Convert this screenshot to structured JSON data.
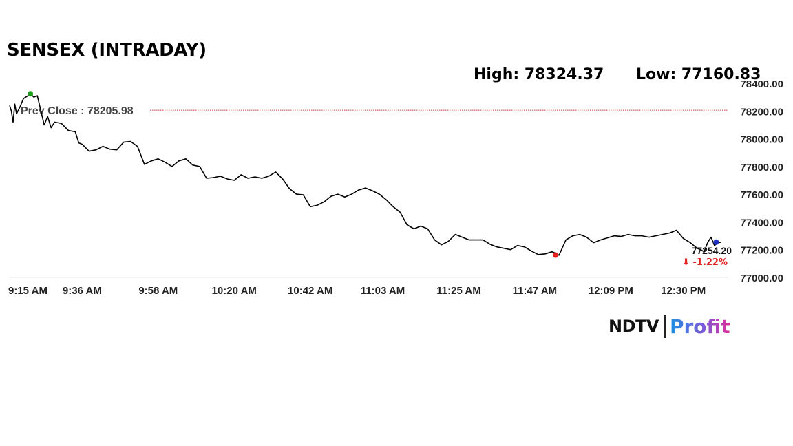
{
  "header": {
    "title": "SENSEX (INTRADAY)",
    "high_text": "High: 78324.37",
    "low_text": "Low: 77160.83"
  },
  "logo": {
    "left": "NDTV",
    "right": "Profit"
  },
  "chart_data": {
    "type": "line",
    "title": "SENSEX (INTRADAY)",
    "xlabel": "",
    "ylabel": "",
    "ylim": [
      77000,
      78400
    ],
    "y_ticks": [
      "78400.00",
      "78200.00",
      "78000.00",
      "77800.00",
      "77600.00",
      "77400.00",
      "77200.00",
      "77000.00"
    ],
    "x_ticks": [
      "9:15 AM",
      "9:36 AM",
      "9:58 AM",
      "10:20 AM",
      "10:42 AM",
      "11:03 AM",
      "11:25 AM",
      "11:47 AM",
      "12:09 PM",
      "12:30 PM"
    ],
    "x_tick_minutes": [
      555,
      576,
      598,
      620,
      642,
      663,
      685,
      707,
      729,
      750
    ],
    "prev_close": {
      "label": "Prev Close : 78205.98",
      "value": 78205.98,
      "color": "#e03a3a"
    },
    "last": {
      "value_text": "77254.20",
      "change_text": "⬇ -1.22%",
      "value": 77254.2,
      "change_color": "#e02020"
    },
    "high_marker": {
      "minute": 561,
      "value": 78324.37,
      "color": "#1a9a1a"
    },
    "low_marker": {
      "minute": 713,
      "value": 77160.83,
      "color": "#e02020"
    },
    "last_marker": {
      "minute": 759.5,
      "color": "#2030c0"
    },
    "line_color": "#000000",
    "series": [
      {
        "x": [
          555,
          555.5,
          556,
          556.5,
          557,
          558,
          559,
          560,
          561,
          562,
          563,
          565,
          566,
          567,
          568,
          570,
          572,
          574,
          575,
          576,
          578,
          580,
          582,
          584,
          586,
          588,
          590,
          592,
          594,
          596,
          598,
          600,
          602,
          604,
          606,
          608,
          610,
          612,
          614,
          616,
          618,
          620,
          622,
          624,
          626,
          628,
          630,
          632,
          634,
          636,
          638,
          640,
          642,
          644,
          646,
          648,
          650,
          652,
          654,
          656,
          658,
          660,
          662,
          664,
          666,
          668,
          670,
          672,
          674,
          676,
          678,
          680,
          682,
          684,
          686,
          688,
          690,
          692,
          694,
          696,
          698,
          700,
          702,
          704,
          706,
          708,
          710,
          712,
          713,
          714,
          716,
          718,
          720,
          722,
          724,
          726,
          728,
          730,
          732,
          734,
          736,
          738,
          740,
          742,
          744,
          746,
          748,
          750,
          752,
          754,
          755,
          756,
          757,
          758,
          759,
          760,
          761
        ],
        "values": [
          78240,
          78200,
          78120,
          78250,
          78180,
          78230,
          78290,
          78305,
          78324,
          78300,
          78310,
          78100,
          78160,
          78080,
          78120,
          78110,
          78060,
          78050,
          77970,
          77960,
          77910,
          77920,
          77945,
          77925,
          77920,
          77975,
          77980,
          77945,
          77815,
          77840,
          77855,
          77830,
          77800,
          77840,
          77855,
          77810,
          77800,
          77715,
          77720,
          77730,
          77710,
          77700,
          77740,
          77715,
          77725,
          77715,
          77730,
          77760,
          77710,
          77640,
          77600,
          77595,
          77510,
          77520,
          77545,
          77585,
          77600,
          77580,
          77600,
          77630,
          77645,
          77625,
          77600,
          77560,
          77510,
          77470,
          77380,
          77350,
          77370,
          77350,
          77270,
          77235,
          77260,
          77310,
          77290,
          77270,
          77270,
          77270,
          77240,
          77220,
          77210,
          77200,
          77230,
          77220,
          77190,
          77165,
          77170,
          77185,
          77175,
          77160,
          77270,
          77300,
          77310,
          77290,
          77250,
          77270,
          77285,
          77300,
          77295,
          77310,
          77300,
          77300,
          77290,
          77300,
          77310,
          77320,
          77340,
          77280,
          77250,
          77210,
          77200,
          77185,
          77250,
          77290,
          77230,
          77250,
          77254
        ]
      }
    ]
  }
}
